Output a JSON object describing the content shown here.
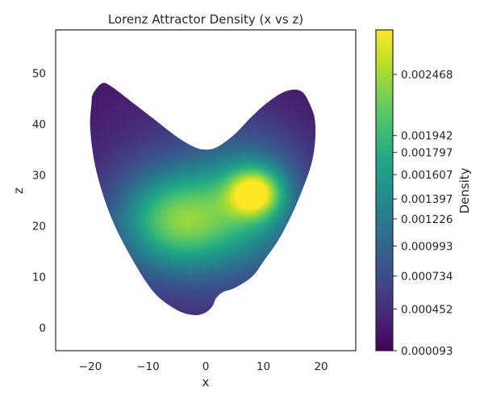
{
  "chart_data": {
    "type": "heatmap",
    "title": "Lorenz Attractor Density (x vs z)",
    "xlabel": "x",
    "ylabel": "z",
    "xlim": [
      -26,
      26
    ],
    "ylim": [
      -4.5,
      58.5
    ],
    "x_ticks": [
      -20,
      -10,
      0,
      10,
      20
    ],
    "x_tick_labels": [
      "−20",
      "−10",
      "0",
      "10",
      "20"
    ],
    "y_ticks": [
      0,
      10,
      20,
      30,
      40,
      50
    ],
    "y_tick_labels": [
      "0",
      "10",
      "20",
      "30",
      "40",
      "50"
    ],
    "grid": false,
    "colormap": "viridis",
    "colorbar": {
      "label": "Density",
      "range": [
        9.3e-05,
        0.00285
      ],
      "ticks": [
        9.3e-05,
        0.000452,
        0.000734,
        0.000993,
        0.001226,
        0.001397,
        0.001607,
        0.001797,
        0.001942,
        0.002468
      ],
      "tick_labels": [
        "0.000093",
        "0.000452",
        "0.000734",
        "0.000993",
        "0.001226",
        "0.001397",
        "0.001607",
        "0.001797",
        "0.001942",
        "0.002468"
      ]
    },
    "density_region_outline": [
      [
        -19.5,
        46
      ],
      [
        -18,
        48
      ],
      [
        -16.5,
        47.5
      ],
      [
        -13,
        44.5
      ],
      [
        -9,
        41
      ],
      [
        -5,
        37.5
      ],
      [
        -2,
        35.5
      ],
      [
        0,
        35
      ],
      [
        2,
        35.5
      ],
      [
        5,
        38
      ],
      [
        8,
        41.5
      ],
      [
        11,
        44.5
      ],
      [
        14,
        46.5
      ],
      [
        16.5,
        46.5
      ],
      [
        18,
        44
      ],
      [
        19,
        40
      ],
      [
        18.5,
        33
      ],
      [
        16,
        25
      ],
      [
        13,
        18
      ],
      [
        10,
        13
      ],
      [
        8,
        10
      ],
      [
        5,
        7.8
      ],
      [
        3,
        7
      ],
      [
        1.8,
        5.8
      ],
      [
        1.2,
        4.3
      ],
      [
        0,
        3
      ],
      [
        -2,
        2.5
      ],
      [
        -5,
        3.5
      ],
      [
        -9,
        7
      ],
      [
        -13,
        14
      ],
      [
        -16.5,
        22
      ],
      [
        -19,
        31
      ],
      [
        -20,
        39
      ],
      [
        -19.8,
        44
      ]
    ],
    "density_peaks": [
      {
        "x": 8.5,
        "z": 26.5,
        "density": 0.00285
      },
      {
        "x": -5,
        "z": 21,
        "density": 0.00185
      }
    ]
  }
}
